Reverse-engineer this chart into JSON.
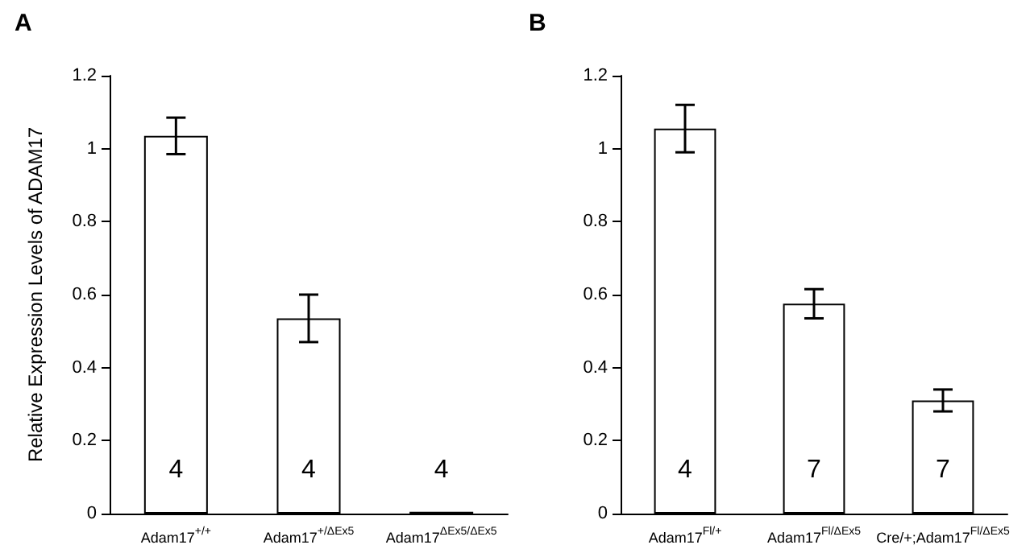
{
  "chart_data": [
    {
      "type": "bar",
      "title": "A",
      "ylabel": "Relative Expression Levels of ADAM17",
      "categories": [
        "Adam17$^{+/+}$",
        "Adam17$^{+/ΔEx5}$",
        "Adam17$^{ΔEx5/ΔEx5}$"
      ],
      "values": [
        1.035,
        0.535,
        0.005
      ],
      "errors": [
        0.05,
        0.065,
        null
      ],
      "color": "#ffffff",
      "ylim": [
        0,
        1.2
      ],
      "yticks": [
        0,
        0.2,
        0.4,
        0.6,
        0.8,
        1.0,
        1.2
      ],
      "annotations": [
        "4",
        "4",
        "4"
      ]
    },
    {
      "type": "bar",
      "title": "B",
      "categories": [
        "Adam17$^{Fl/+}$",
        "Adam17$^{Fl/ΔEx5}$",
        "Cre/+;Adam17$^{Fl/ΔEx5}$"
      ],
      "values": [
        1.055,
        0.575,
        0.31
      ],
      "errors": [
        0.065,
        0.04,
        0.03
      ],
      "color": "#ffffff",
      "ylim": [
        0,
        1.2
      ],
      "yticks": [
        0,
        0.2,
        0.4,
        0.6,
        0.8,
        1.0,
        1.2
      ],
      "annotations": [
        "4",
        "7",
        "7"
      ]
    }
  ]
}
